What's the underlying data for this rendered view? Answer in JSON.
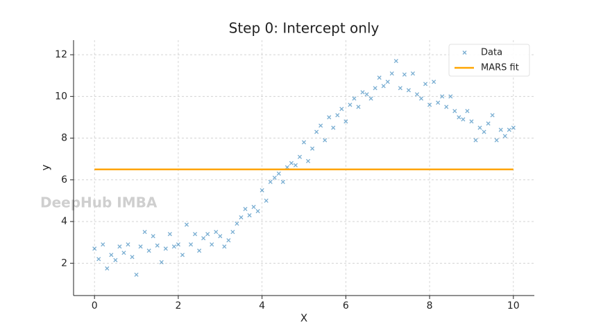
{
  "chart_data": {
    "type": "scatter-line",
    "title": "Step 0: Intercept only",
    "x_label": "X",
    "y_label": "y",
    "watermark": "DeepHub IMBA",
    "xlim": [
      -0.5,
      10.5
    ],
    "ylim": [
      0.45,
      12.7
    ],
    "xticks": [
      0,
      2,
      4,
      6,
      8,
      10
    ],
    "yticks": [
      2,
      4,
      6,
      8,
      10,
      12
    ],
    "grid": true,
    "legend": "upper right",
    "series": [
      {
        "name": "Data",
        "kind": "scatter",
        "color": "#1f77b4",
        "x": [
          0,
          0.1,
          0.2,
          0.3,
          0.4,
          0.5,
          0.6,
          0.7,
          0.8,
          0.9,
          1,
          1.1,
          1.2,
          1.3,
          1.4,
          1.5,
          1.6,
          1.7,
          1.8,
          1.9,
          2,
          2.1,
          2.2,
          2.3,
          2.4,
          2.5,
          2.6,
          2.7,
          2.8,
          2.9,
          3,
          3.1,
          3.2,
          3.3,
          3.4,
          3.5,
          3.6,
          3.7,
          3.8,
          3.9,
          4,
          4.1,
          4.2,
          4.3,
          4.4,
          4.5,
          4.6,
          4.7,
          4.8,
          4.9,
          5,
          5.1,
          5.2,
          5.3,
          5.4,
          5.5,
          5.6,
          5.7,
          5.8,
          5.9,
          6,
          6.1,
          6.2,
          6.3,
          6.4,
          6.5,
          6.6,
          6.7,
          6.8,
          6.9,
          7,
          7.1,
          7.2,
          7.3,
          7.4,
          7.5,
          7.6,
          7.7,
          7.8,
          7.9,
          8,
          8.1,
          8.2,
          8.3,
          8.4,
          8.5,
          8.6,
          8.7,
          8.8,
          8.9,
          9,
          9.1,
          9.2,
          9.3,
          9.4,
          9.5,
          9.6,
          9.7,
          9.8,
          9.9,
          10
        ],
        "values": [
          2.7,
          2.2,
          2.9,
          1.75,
          2.4,
          2.15,
          2.8,
          2.5,
          2.9,
          2.3,
          1.45,
          2.8,
          3.5,
          2.6,
          3.3,
          2.85,
          2.05,
          2.7,
          3.4,
          2.8,
          2.9,
          2.4,
          3.85,
          2.9,
          3.4,
          2.6,
          3.2,
          3.4,
          2.9,
          3.5,
          3.3,
          2.8,
          3.1,
          3.5,
          3.9,
          4.2,
          4.6,
          4.3,
          4.7,
          4.5,
          5.5,
          5.0,
          5.9,
          6.1,
          6.3,
          5.9,
          6.6,
          6.8,
          6.7,
          7.1,
          7.8,
          6.9,
          7.5,
          8.3,
          8.6,
          7.9,
          9.0,
          8.5,
          9.1,
          9.4,
          8.8,
          9.6,
          9.9,
          9.5,
          10.2,
          10.1,
          9.9,
          10.4,
          10.9,
          10.5,
          10.7,
          11.1,
          11.7,
          10.4,
          11.05,
          10.3,
          11.1,
          10.1,
          9.9,
          10.6,
          9.6,
          10.7,
          9.7,
          10.0,
          9.5,
          10.0,
          9.3,
          9.0,
          8.9,
          9.3,
          8.8,
          7.9,
          8.5,
          8.3,
          8.7,
          9.1,
          7.9,
          8.4,
          8.1,
          8.4,
          8.5
        ]
      },
      {
        "name": "MARS fit",
        "kind": "line",
        "color": "#ffa500",
        "x": [
          0,
          10
        ],
        "values": [
          6.5,
          6.5
        ]
      }
    ]
  }
}
